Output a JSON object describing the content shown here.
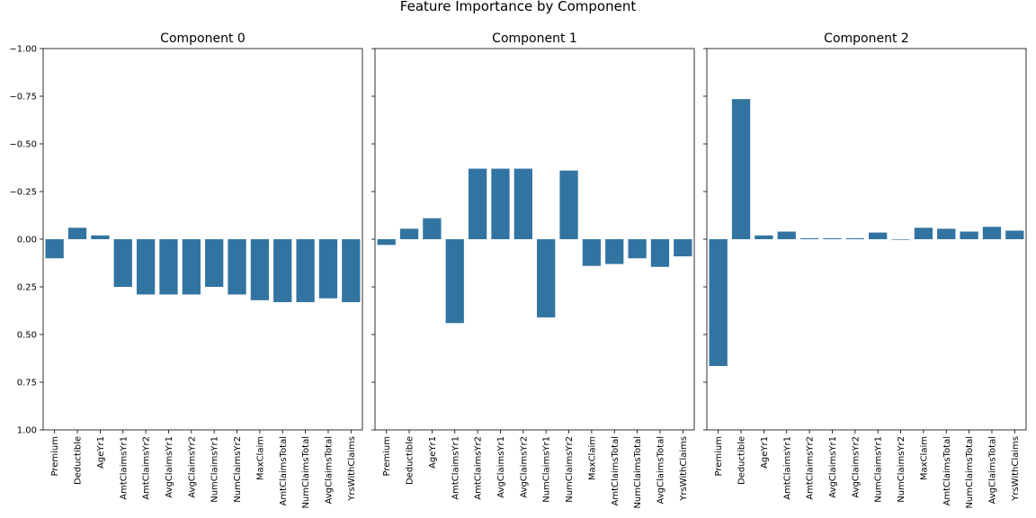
{
  "figure_title": "Feature Importance by Component",
  "chart_data": [
    {
      "type": "bar",
      "title": "Component 0",
      "categories": [
        "Premium",
        "Deductible",
        "AgeYr1",
        "AmtClaimsYr1",
        "AmtClaimsYr2",
        "AvgClaimsYr1",
        "AvgClaimsYr2",
        "NumClaimsYr1",
        "NumClaimsYr2",
        "MaxClaim",
        "AmtClaimsTotal",
        "NumClaimsTotal",
        "AvgClaimsTotal",
        "YrsWithClaims"
      ],
      "values": [
        0.1,
        -0.06,
        -0.02,
        0.25,
        0.29,
        0.29,
        0.29,
        0.25,
        0.29,
        0.32,
        0.33,
        0.33,
        0.31,
        0.33
      ],
      "ylim": [
        1.0,
        -1.0
      ],
      "yticks": [
        -1.0,
        -0.75,
        -0.5,
        -0.25,
        0.0,
        0.25,
        0.5,
        0.75,
        1.0
      ],
      "ytick_labels": [
        "−1.00",
        "−0.75",
        "−0.50",
        "−0.25",
        "0.00",
        "0.25",
        "0.50",
        "0.75",
        "1.00"
      ],
      "bar_color": "#3274a1",
      "xlabel": "",
      "ylabel": ""
    },
    {
      "type": "bar",
      "title": "Component 1",
      "categories": [
        "Premium",
        "Deductible",
        "AgeYr1",
        "AmtClaimsYr1",
        "AmtClaimsYr2",
        "AvgClaimsYr1",
        "AvgClaimsYr2",
        "NumClaimsYr1",
        "NumClaimsYr2",
        "MaxClaim",
        "AmtClaimsTotal",
        "NumClaimsTotal",
        "AvgClaimsTotal",
        "YrsWithClaims"
      ],
      "values": [
        0.03,
        -0.055,
        -0.11,
        0.44,
        -0.37,
        -0.37,
        -0.37,
        0.41,
        -0.36,
        0.14,
        0.13,
        0.1,
        0.145,
        0.09
      ],
      "ylim": [
        1.0,
        -1.0
      ],
      "bar_color": "#3274a1",
      "xlabel": "",
      "ylabel": ""
    },
    {
      "type": "bar",
      "title": "Component 2",
      "categories": [
        "Premium",
        "Deductible",
        "AgeYr1",
        "AmtClaimsYr1",
        "AmtClaimsYr2",
        "AvgClaimsYr1",
        "AvgClaimsYr2",
        "NumClaimsYr1",
        "NumClaimsYr2",
        "MaxClaim",
        "AmtClaimsTotal",
        "NumClaimsTotal",
        "AvgClaimsTotal",
        "YrsWithClaims"
      ],
      "values": [
        0.665,
        -0.735,
        -0.02,
        -0.04,
        -0.005,
        -0.005,
        -0.005,
        -0.035,
        0.0,
        -0.06,
        -0.055,
        -0.04,
        -0.065,
        -0.045
      ],
      "ylim": [
        1.0,
        -1.0
      ],
      "bar_color": "#3274a1",
      "xlabel": "",
      "ylabel": ""
    }
  ]
}
